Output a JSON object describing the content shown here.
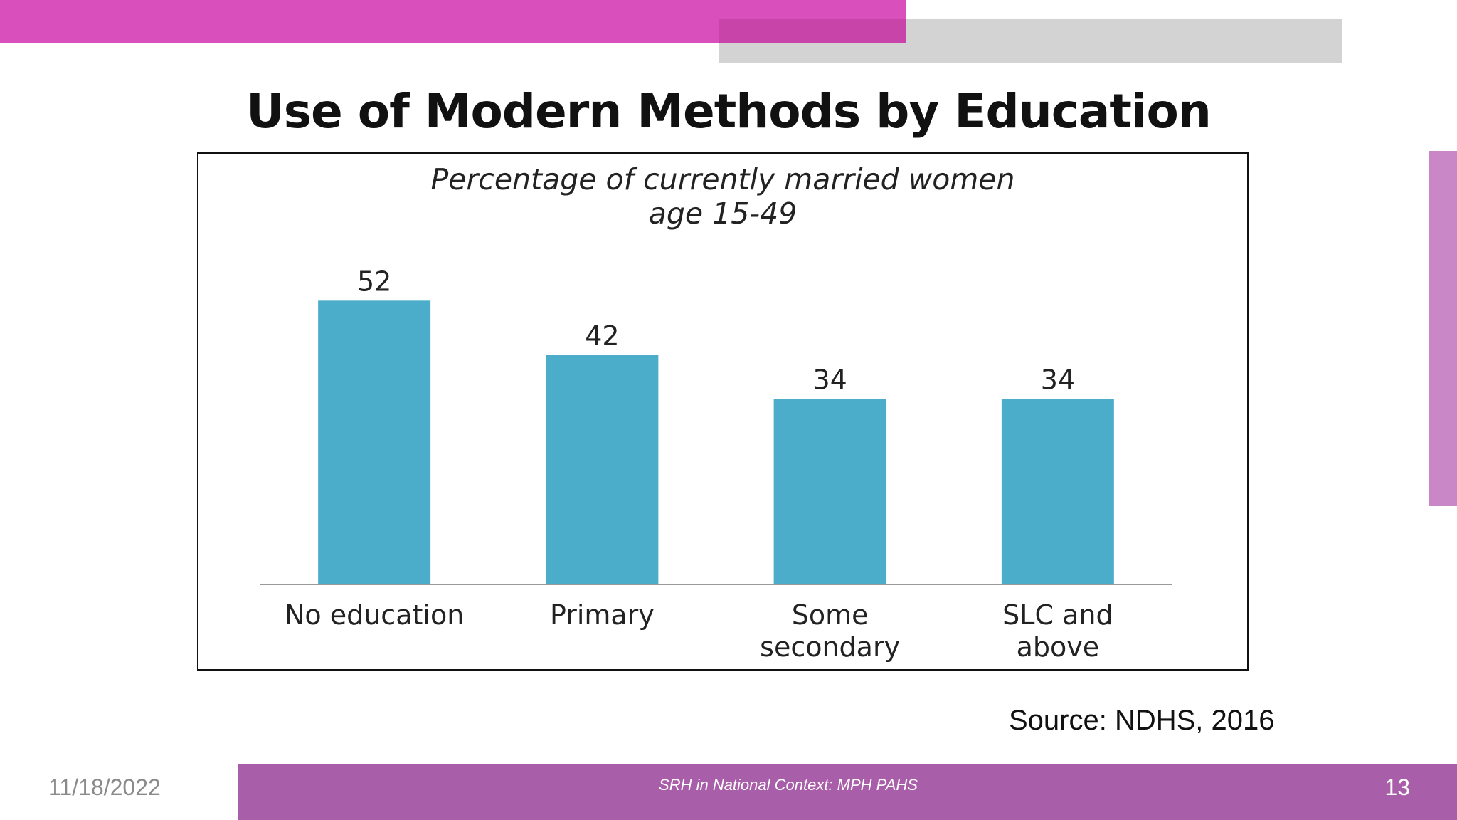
{
  "slide": {
    "title": "Use of Modern Methods by Education",
    "source": "Source:  NDHS, 2016"
  },
  "footer": {
    "date": "11/18/2022",
    "center_text": "SRH in National Context: MPH PAHS",
    "page_number": "13"
  },
  "colors": {
    "accent_magenta": "#d94fbb",
    "accent_gray": "#d2d3d2",
    "side_accent": "#c987c8",
    "footer_purple": "#a95ea9",
    "bar_color": "#4badc9"
  },
  "chart_data": {
    "type": "bar",
    "title_lines": [
      "Percentage of currently married women",
      "age 15-49"
    ],
    "categories": [
      [
        "No education"
      ],
      [
        "Primary"
      ],
      [
        "Some",
        "secondary"
      ],
      [
        "SLC and",
        "above"
      ]
    ],
    "values": [
      52,
      42,
      34,
      34
    ],
    "ylim": [
      0,
      60
    ],
    "grid": false,
    "y_axis_shown": false
  }
}
